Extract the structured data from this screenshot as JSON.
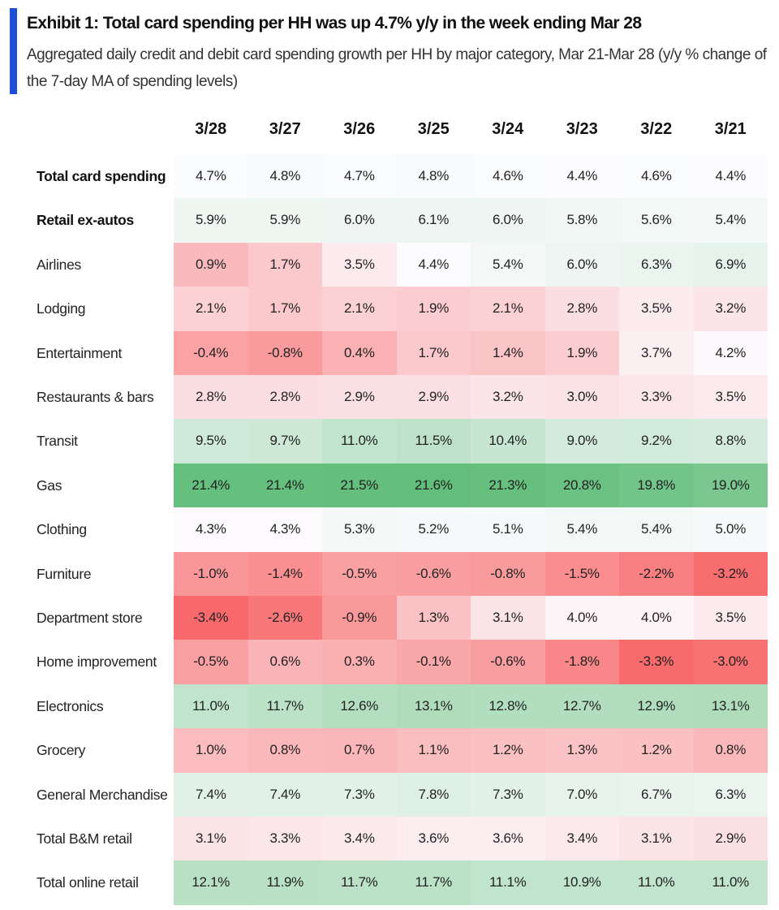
{
  "header": {
    "title": "Exhibit 1: Total card spending per HH was up 4.7% y/y in the week ending Mar 28",
    "subtitle": "Aggregated daily credit and debit card spending growth per HH by major category, Mar 21-Mar 28 (y/y % change of the 7-day MA of spending levels)",
    "accent_color": "#1d4ed8"
  },
  "chart_data": {
    "type": "heatmap",
    "columns": [
      "3/28",
      "3/27",
      "3/26",
      "3/25",
      "3/24",
      "3/23",
      "3/22",
      "3/21"
    ],
    "color_scale": {
      "low": "#f8696b",
      "mid": "#fcfcff",
      "high": "#63be7b"
    },
    "rows": [
      {
        "label": "Total card spending",
        "bold": true,
        "values": [
          4.7,
          4.8,
          4.7,
          4.8,
          4.6,
          4.4,
          4.6,
          4.4
        ]
      },
      {
        "label": "Retail ex-autos",
        "bold": true,
        "values": [
          5.9,
          5.9,
          6.0,
          6.1,
          6.0,
          5.8,
          5.6,
          5.4
        ]
      },
      {
        "label": "Airlines",
        "values": [
          0.9,
          1.7,
          3.5,
          4.4,
          5.4,
          6.0,
          6.3,
          6.9
        ]
      },
      {
        "label": "Lodging",
        "values": [
          2.1,
          1.7,
          2.1,
          1.9,
          2.1,
          2.8,
          3.5,
          3.2
        ]
      },
      {
        "label": "Entertainment",
        "values": [
          -0.4,
          -0.8,
          0.4,
          1.7,
          1.4,
          1.9,
          3.7,
          4.2
        ]
      },
      {
        "label": "Restaurants & bars",
        "values": [
          2.8,
          2.8,
          2.9,
          2.9,
          3.2,
          3.0,
          3.3,
          3.5
        ]
      },
      {
        "label": "Transit",
        "values": [
          9.5,
          9.7,
          11.0,
          11.5,
          10.4,
          9.0,
          9.2,
          8.8
        ]
      },
      {
        "label": "Gas",
        "values": [
          21.4,
          21.4,
          21.5,
          21.6,
          21.3,
          20.8,
          19.8,
          19.0
        ]
      },
      {
        "label": "Clothing",
        "values": [
          4.3,
          4.3,
          5.3,
          5.2,
          5.1,
          5.4,
          5.4,
          5.0
        ]
      },
      {
        "label": "Furniture",
        "values": [
          -1.0,
          -1.4,
          -0.5,
          -0.6,
          -0.8,
          -1.5,
          -2.2,
          -3.2
        ]
      },
      {
        "label": "Department store",
        "values": [
          -3.4,
          -2.6,
          -0.9,
          1.3,
          3.1,
          4.0,
          4.0,
          3.5
        ]
      },
      {
        "label": "Home improvement",
        "values": [
          -0.5,
          0.6,
          0.3,
          -0.1,
          -0.6,
          -1.8,
          -3.3,
          -3.0
        ]
      },
      {
        "label": "Electronics",
        "values": [
          11.0,
          11.7,
          12.6,
          13.1,
          12.8,
          12.7,
          12.9,
          13.1
        ]
      },
      {
        "label": "Grocery",
        "values": [
          1.0,
          0.8,
          0.7,
          1.1,
          1.2,
          1.3,
          1.2,
          0.8
        ]
      },
      {
        "label": "General Merchandise",
        "values": [
          7.4,
          7.4,
          7.3,
          7.8,
          7.3,
          7.0,
          6.7,
          6.3
        ]
      },
      {
        "label": "Total B&M retail",
        "values": [
          3.1,
          3.3,
          3.4,
          3.6,
          3.6,
          3.4,
          3.1,
          2.9
        ]
      },
      {
        "label": "Total online retail",
        "values": [
          12.1,
          11.9,
          11.7,
          11.7,
          11.1,
          10.9,
          11.0,
          11.0
        ]
      }
    ]
  }
}
